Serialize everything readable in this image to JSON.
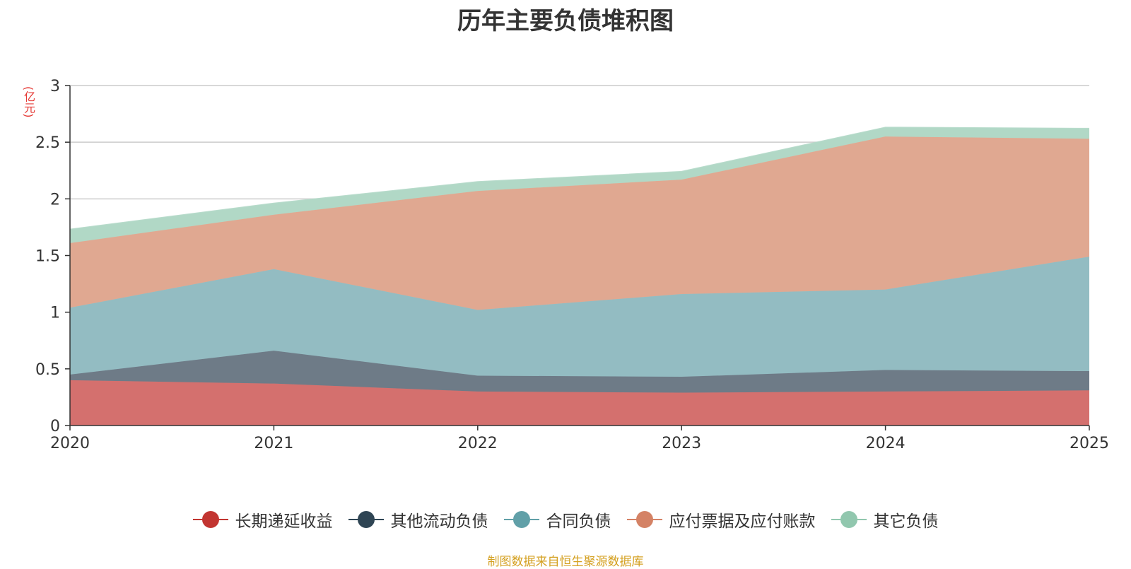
{
  "chart_data": {
    "type": "area",
    "title": "历年主要负债堆积图",
    "unit_label": "(亿元)",
    "x": [
      "2020",
      "2021",
      "2022",
      "2023",
      "2024",
      "2025"
    ],
    "ylim": [
      0,
      3
    ],
    "yticks": [
      "0",
      "0.5",
      "1",
      "1.5",
      "2",
      "2.5",
      "3"
    ],
    "ytick_values": [
      0,
      0.5,
      1,
      1.5,
      2,
      2.5,
      3
    ],
    "stacked": true,
    "grid": true,
    "legend_position": "bottom",
    "series": [
      {
        "name": "长期递延收益",
        "color": "#c23531",
        "fill": "#d4706e",
        "values": [
          0.4,
          0.37,
          0.3,
          0.29,
          0.3,
          0.31
        ]
      },
      {
        "name": "其他流动负债",
        "color": "#2f4554",
        "fill": "#6e7b87",
        "values": [
          0.05,
          0.29,
          0.14,
          0.14,
          0.19,
          0.17
        ]
      },
      {
        "name": "合同负债",
        "color": "#61a0a8",
        "fill": "#93bcc2",
        "values": [
          0.59,
          0.72,
          0.58,
          0.73,
          0.71,
          1.01
        ]
      },
      {
        "name": "应付票据及应付账款",
        "color": "#d48265",
        "fill": "#e0a891",
        "values": [
          0.57,
          0.48,
          1.05,
          1.01,
          1.35,
          1.04
        ]
      },
      {
        "name": "其它负债",
        "color": "#91c7ae",
        "fill": "#b1d8c6",
        "values": [
          0.12,
          0.1,
          0.08,
          0.07,
          0.08,
          0.09
        ]
      }
    ]
  },
  "source_note": "制图数据来自恒生聚源数据库"
}
